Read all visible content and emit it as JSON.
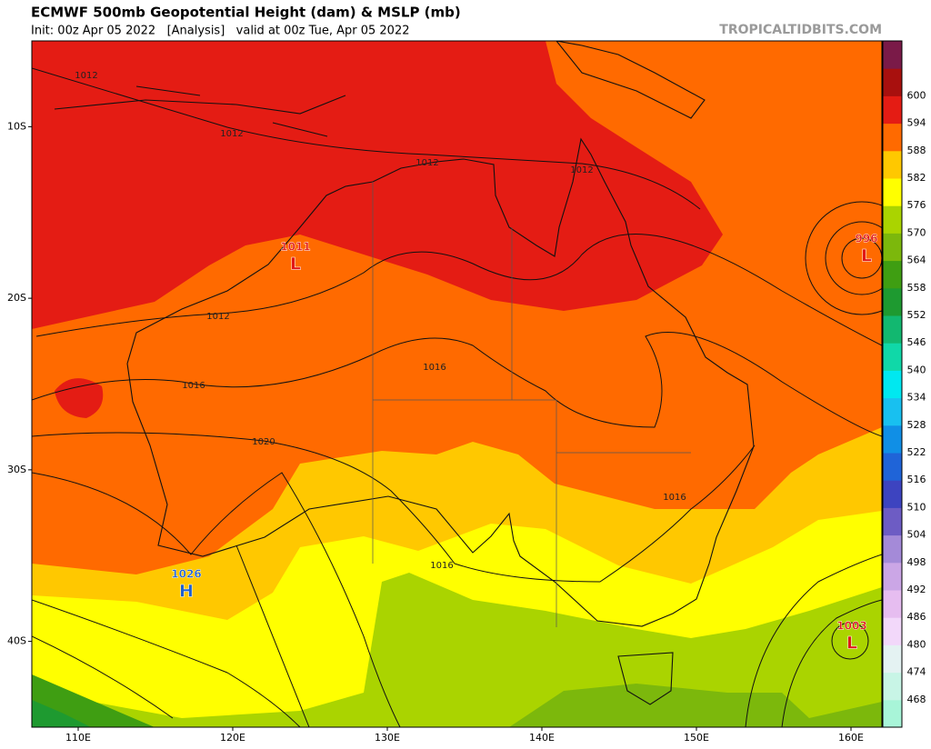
{
  "header": {
    "title": "ECMWF 500mb Geopotential Height (dam) & MSLP (mb)",
    "subtitle": "Init: 00z Apr 05 2022   [Analysis]   valid at 00z Tue, Apr 05 2022",
    "watermark": "TROPICALTIDBITS.COM"
  },
  "map": {
    "lonlim": [
      107,
      162
    ],
    "latlim": [
      -45,
      -5
    ],
    "lon_ticks": [
      {
        "value": 110,
        "label": "110E"
      },
      {
        "value": 120,
        "label": "120E"
      },
      {
        "value": 130,
        "label": "130E"
      },
      {
        "value": 140,
        "label": "140E"
      },
      {
        "value": 150,
        "label": "150E"
      },
      {
        "value": 160,
        "label": "160E"
      }
    ],
    "lat_ticks": [
      {
        "value": -10,
        "label": "10S"
      },
      {
        "value": -20,
        "label": "20S"
      },
      {
        "value": -30,
        "label": "30S"
      },
      {
        "value": -40,
        "label": "40S"
      }
    ],
    "isobar_labels": [
      1012,
      1012,
      1012,
      1012,
      1012,
      1016,
      1016,
      1016,
      1016,
      1020
    ],
    "centers": [
      {
        "value": 1011,
        "kind": "L"
      },
      {
        "value": 996,
        "kind": "L"
      },
      {
        "value": 1026,
        "kind": "H"
      },
      {
        "value": 1003,
        "kind": "L"
      }
    ]
  },
  "colorbar": {
    "levels": [
      468,
      474,
      480,
      486,
      492,
      498,
      504,
      510,
      516,
      522,
      528,
      534,
      540,
      546,
      552,
      558,
      564,
      570,
      576,
      582,
      588,
      594,
      600
    ],
    "colors": [
      "#a8f5d8",
      "#c8f5e6",
      "#e4f2f2",
      "#f2d8fa",
      "#e6bdf0",
      "#cba6e6",
      "#a48ad8",
      "#6d5cc4",
      "#3d44c0",
      "#1f64d8",
      "#108fe6",
      "#18c0f0",
      "#00e8f0",
      "#10d8a8",
      "#12b870",
      "#1e9a30",
      "#3f9e12",
      "#7cb80c",
      "#aad400",
      "#ffff00",
      "#ffc800",
      "#ff6a00",
      "#e41c14",
      "#a8100e",
      "#7a1a48"
    ]
  }
}
